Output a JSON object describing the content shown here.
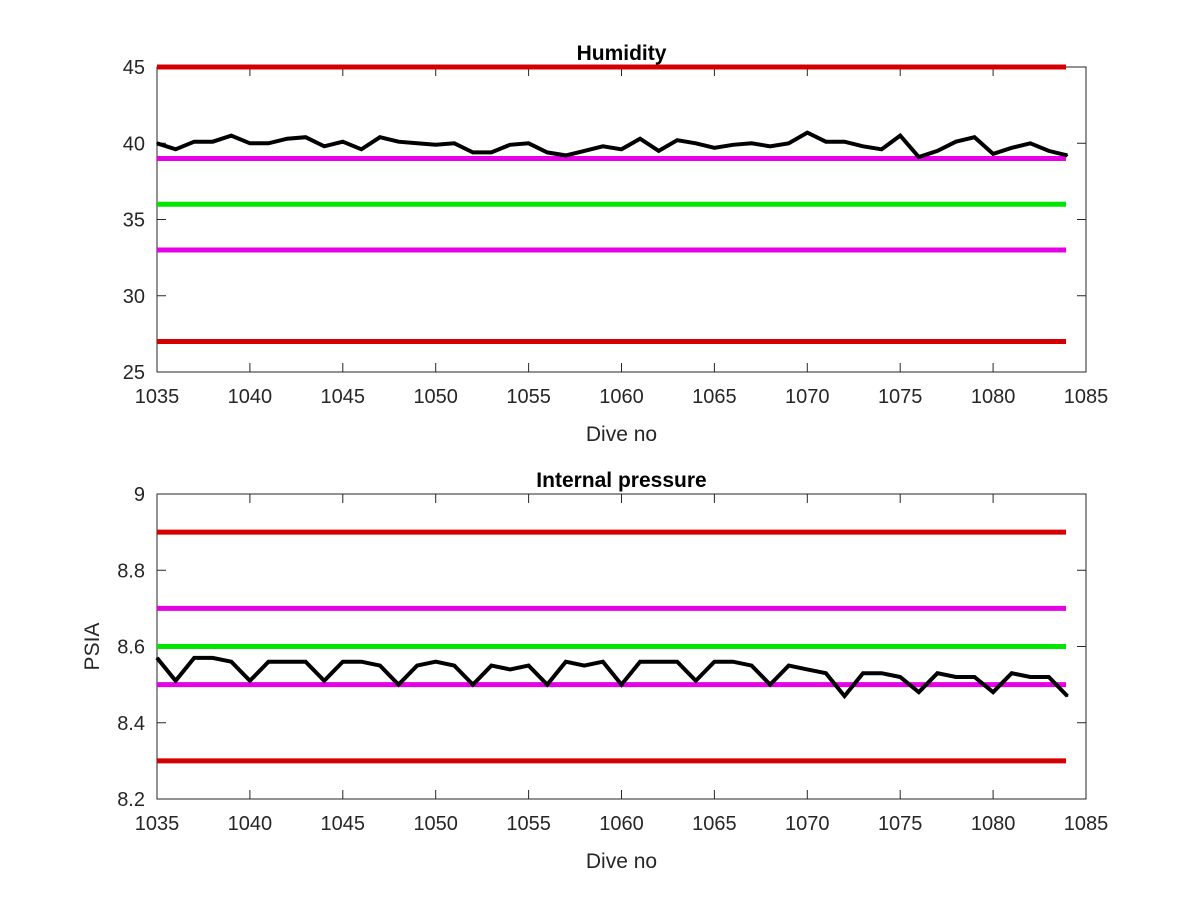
{
  "chart_data": [
    {
      "type": "line",
      "title": "Humidity",
      "xlabel": "Dive no",
      "ylabel": "",
      "xlim": [
        1035,
        1085
      ],
      "ylim": [
        25,
        45
      ],
      "xticks": [
        "1035",
        "1040",
        "1045",
        "1050",
        "1055",
        "1060",
        "1065",
        "1070",
        "1075",
        "1080",
        "1085"
      ],
      "yticks": [
        "25",
        "30",
        "35",
        "40",
        "45"
      ],
      "grid": false,
      "reference_lines": [
        {
          "y": 45,
          "color": "#d40000"
        },
        {
          "y": 39,
          "color": "#e600e6"
        },
        {
          "y": 36,
          "color": "#00e600"
        },
        {
          "y": 33,
          "color": "#e600e6"
        },
        {
          "y": 27,
          "color": "#d40000"
        }
      ],
      "series": [
        {
          "color": "#000000",
          "x": [
            1035,
            1036,
            1037,
            1038,
            1039,
            1040,
            1041,
            1042,
            1043,
            1044,
            1045,
            1046,
            1047,
            1048,
            1049,
            1050,
            1051,
            1052,
            1053,
            1054,
            1055,
            1056,
            1057,
            1058,
            1059,
            1060,
            1061,
            1062,
            1063,
            1064,
            1065,
            1066,
            1067,
            1068,
            1069,
            1070,
            1071,
            1072,
            1073,
            1074,
            1075,
            1076,
            1077,
            1078,
            1079,
            1080,
            1081,
            1082,
            1083,
            1084
          ],
          "values": [
            40.0,
            39.6,
            40.1,
            40.1,
            40.5,
            40.0,
            40.0,
            40.3,
            40.4,
            39.8,
            40.1,
            39.6,
            40.4,
            40.1,
            40.0,
            39.9,
            40.0,
            39.4,
            39.4,
            39.9,
            40.0,
            39.4,
            39.2,
            39.5,
            39.8,
            39.6,
            40.3,
            39.5,
            40.2,
            40.0,
            39.7,
            39.9,
            40.0,
            39.8,
            40.0,
            40.7,
            40.1,
            40.1,
            39.8,
            39.6,
            40.5,
            39.1,
            39.5,
            40.1,
            40.4,
            39.3,
            39.7,
            40.0,
            39.5,
            39.2
          ]
        }
      ]
    },
    {
      "type": "line",
      "title": "Internal pressure",
      "xlabel": "Dive no",
      "ylabel": "PSIA",
      "xlim": [
        1035,
        1085
      ],
      "ylim": [
        8.2,
        9
      ],
      "xticks": [
        "1035",
        "1040",
        "1045",
        "1050",
        "1055",
        "1060",
        "1065",
        "1070",
        "1075",
        "1080",
        "1085"
      ],
      "yticks": [
        "8.2",
        "8.4",
        "8.6",
        "8.8",
        "9"
      ],
      "grid": false,
      "reference_lines": [
        {
          "y": 8.9,
          "color": "#d40000"
        },
        {
          "y": 8.7,
          "color": "#e600e6"
        },
        {
          "y": 8.6,
          "color": "#00e600"
        },
        {
          "y": 8.5,
          "color": "#e600e6"
        },
        {
          "y": 8.3,
          "color": "#d40000"
        }
      ],
      "series": [
        {
          "color": "#000000",
          "x": [
            1035,
            1036,
            1037,
            1038,
            1039,
            1040,
            1041,
            1042,
            1043,
            1044,
            1045,
            1046,
            1047,
            1048,
            1049,
            1050,
            1051,
            1052,
            1053,
            1054,
            1055,
            1056,
            1057,
            1058,
            1059,
            1060,
            1061,
            1062,
            1063,
            1064,
            1065,
            1066,
            1067,
            1068,
            1069,
            1070,
            1071,
            1072,
            1073,
            1074,
            1075,
            1076,
            1077,
            1078,
            1079,
            1080,
            1081,
            1082,
            1083,
            1084
          ],
          "values": [
            8.57,
            8.51,
            8.57,
            8.57,
            8.56,
            8.51,
            8.56,
            8.56,
            8.56,
            8.51,
            8.56,
            8.56,
            8.55,
            8.5,
            8.55,
            8.56,
            8.55,
            8.5,
            8.55,
            8.54,
            8.55,
            8.5,
            8.56,
            8.55,
            8.56,
            8.5,
            8.56,
            8.56,
            8.56,
            8.51,
            8.56,
            8.56,
            8.55,
            8.5,
            8.55,
            8.54,
            8.53,
            8.47,
            8.53,
            8.53,
            8.52,
            8.48,
            8.53,
            8.52,
            8.52,
            8.48,
            8.53,
            8.52,
            8.52,
            8.47
          ]
        }
      ]
    }
  ]
}
